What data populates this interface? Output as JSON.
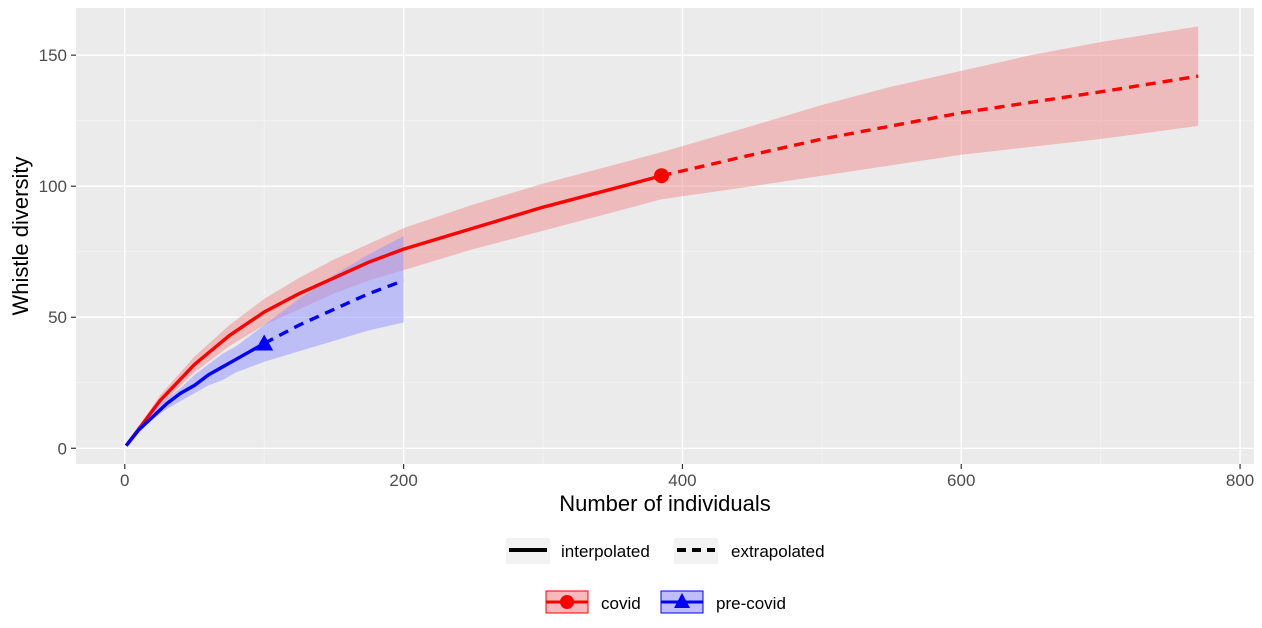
{
  "chart_data": {
    "type": "line",
    "xlabel": "Number of individuals",
    "ylabel": "Whistle diversity",
    "xlim": [
      -35,
      810
    ],
    "ylim": [
      -6,
      168
    ],
    "x_ticks": [
      0,
      200,
      400,
      600,
      800
    ],
    "y_ticks": [
      0,
      50,
      100,
      150
    ],
    "grid": true,
    "legend_position": "bottom",
    "legend_linetype": [
      {
        "label": "interpolated",
        "style": "solid"
      },
      {
        "label": "extrapolated",
        "style": "dashed"
      }
    ],
    "series": [
      {
        "name": "covid",
        "color": "#ff0000",
        "fill": "#f08080",
        "marker": "circle",
        "observed": {
          "x": 385,
          "y": 104
        },
        "interpolated": {
          "x": [
            1,
            25,
            50,
            75,
            100,
            125,
            150,
            175,
            200,
            250,
            300,
            350,
            385
          ],
          "y": [
            1,
            18,
            32,
            43,
            52,
            59,
            65,
            71,
            76,
            84,
            92,
            99,
            104
          ],
          "lower": [
            1,
            16,
            29,
            39,
            47,
            53,
            59,
            64,
            68,
            76,
            83,
            90,
            95
          ],
          "upper": [
            1,
            20,
            35,
            47,
            57,
            65,
            72,
            78,
            84,
            93,
            101,
            108,
            113
          ]
        },
        "extrapolated": {
          "x": [
            385,
            450,
            500,
            550,
            600,
            650,
            700,
            770
          ],
          "y": [
            104,
            112,
            118,
            123,
            128,
            132,
            136,
            142
          ],
          "lower": [
            95,
            100,
            104,
            108,
            112,
            115,
            118,
            123
          ],
          "upper": [
            113,
            123,
            131,
            138,
            144,
            150,
            155,
            161
          ]
        }
      },
      {
        "name": "pre-covid",
        "color": "#0000ff",
        "fill": "#9999ff",
        "marker": "triangle",
        "observed": {
          "x": 100,
          "y": 40
        },
        "interpolated": {
          "x": [
            1,
            10,
            20,
            30,
            40,
            50,
            60,
            70,
            80,
            90,
            100
          ],
          "y": [
            1,
            7,
            12,
            17,
            21,
            24,
            28,
            31,
            34,
            37,
            40
          ],
          "lower": [
            1,
            6,
            11,
            15,
            18,
            21,
            24,
            26,
            29,
            31,
            33
          ],
          "upper": [
            1,
            8,
            14,
            19,
            23,
            28,
            32,
            36,
            39,
            43,
            47
          ]
        },
        "extrapolated": {
          "x": [
            100,
            125,
            150,
            175,
            200
          ],
          "y": [
            40,
            47,
            53,
            59,
            64
          ],
          "lower": [
            33,
            37,
            41,
            45,
            48
          ],
          "upper": [
            47,
            57,
            66,
            74,
            81
          ]
        }
      }
    ]
  }
}
